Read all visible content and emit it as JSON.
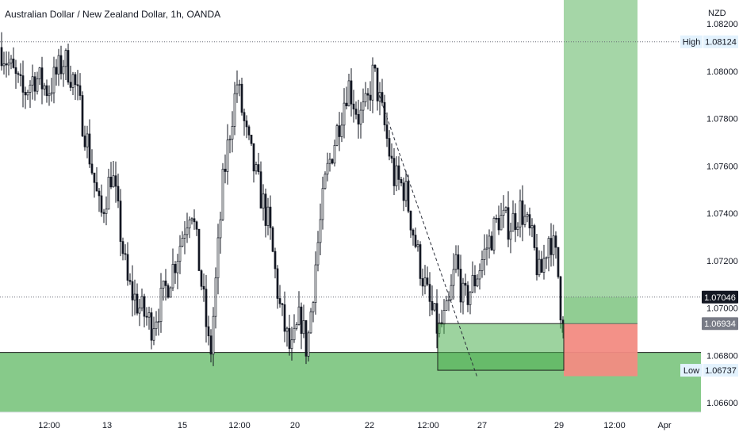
{
  "chart_data": {
    "type": "candlestick",
    "title": "Australian Dollar / New Zealand Dollar, 1h, OANDA",
    "currency": "NZD",
    "ylim": [
      1.0655,
      1.0828
    ],
    "y_ticks": [
      {
        "value": 1.082,
        "label": "1.08200"
      },
      {
        "value": 1.08,
        "label": "1.08000"
      },
      {
        "value": 1.078,
        "label": "1.07800"
      },
      {
        "value": 1.076,
        "label": "1.07600"
      },
      {
        "value": 1.074,
        "label": "1.07400"
      },
      {
        "value": 1.072,
        "label": "1.07200"
      },
      {
        "value": 1.07,
        "label": "1.07000"
      },
      {
        "value": 1.068,
        "label": "1.06800"
      },
      {
        "value": 1.066,
        "label": "1.06600"
      }
    ],
    "x_ticks": [
      "12:00",
      "13",
      "15",
      "12:00",
      "20",
      "22",
      "12:00",
      "27",
      "29",
      "12:00",
      "Apr"
    ],
    "price_tags": [
      {
        "label": "High",
        "value": 1.08124,
        "text": "1.08124",
        "style": "hl"
      },
      {
        "label": "",
        "value": 1.07046,
        "text": "1.07046",
        "style": "last"
      },
      {
        "label": "",
        "value": 1.06934,
        "text": "1.06934",
        "style": "grey"
      },
      {
        "label": "Low",
        "value": 1.06737,
        "text": "1.06737",
        "style": "hl"
      }
    ],
    "anchors": [
      [
        0,
        1.081
      ],
      [
        14,
        1.08
      ],
      [
        28,
        1.079
      ],
      [
        42,
        1.0798
      ],
      [
        60,
        1.0792
      ],
      [
        80,
        1.0805
      ],
      [
        92,
        1.0796
      ],
      [
        108,
        1.0772
      ],
      [
        126,
        1.0738
      ],
      [
        140,
        1.0758
      ],
      [
        160,
        1.071
      ],
      [
        175,
        1.07
      ],
      [
        190,
        1.0693
      ],
      [
        205,
        1.0705
      ],
      [
        222,
        1.0722
      ],
      [
        240,
        1.0745
      ],
      [
        255,
        1.0705
      ],
      [
        264,
        1.0678
      ],
      [
        280,
        1.0752
      ],
      [
        290,
        1.0778
      ],
      [
        298,
        1.0795
      ],
      [
        310,
        1.0772
      ],
      [
        322,
        1.0755
      ],
      [
        338,
        1.0735
      ],
      [
        352,
        1.07
      ],
      [
        366,
        1.068
      ],
      [
        378,
        1.0697
      ],
      [
        386,
        1.0682
      ],
      [
        398,
        1.0722
      ],
      [
        410,
        1.0755
      ],
      [
        424,
        1.0775
      ],
      [
        438,
        1.0795
      ],
      [
        452,
        1.078
      ],
      [
        462,
        1.0785
      ],
      [
        470,
        1.08
      ],
      [
        482,
        1.078
      ],
      [
        496,
        1.0755
      ],
      [
        510,
        1.075
      ],
      [
        526,
        1.0722
      ],
      [
        540,
        1.0702
      ],
      [
        552,
        1.069
      ],
      [
        564,
        1.0698
      ],
      [
        574,
        1.072
      ],
      [
        584,
        1.0702
      ],
      [
        598,
        1.0712
      ],
      [
        612,
        1.0725
      ],
      [
        628,
        1.0738
      ],
      [
        642,
        1.0735
      ],
      [
        656,
        1.0742
      ],
      [
        670,
        1.0728
      ],
      [
        680,
        1.0712
      ],
      [
        692,
        1.0732
      ],
      [
        702,
        1.0718
      ],
      [
        708,
        1.0692
      ],
      [
        712,
        1.0704
      ]
    ],
    "drawings": {
      "horizontal_lines": [
        1.08124,
        1.07046
      ],
      "demand_zone": {
        "top": 1.06812,
        "bottom": 1.0656
      },
      "inner_zone": {
        "top": 1.06934,
        "bottom": 1.06737
      },
      "long_position": {
        "entry": 1.06934,
        "target": 1.083,
        "stop": 1.06712
      },
      "projection_line": [
        [
          476,
          1.0792
        ],
        [
          602,
          1.06706
        ]
      ]
    }
  }
}
